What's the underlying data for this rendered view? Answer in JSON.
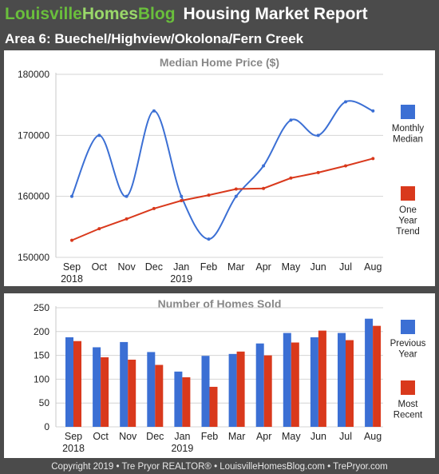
{
  "header": {
    "brand_part1": "Louisville",
    "brand_part2": "Homes",
    "brand_part3": "Blog",
    "report_title": "Housing Market Report"
  },
  "area_title": "Area 6: Buechel/Highview/Okolona/Fern Creek",
  "footer": "Copyright 2019 • Tre Pryor REALTOR® • LouisvilleHomesBlog.com • TrePryor.com",
  "colors": {
    "blue": "#3b6fd4",
    "red": "#d9391c",
    "header_bg": "#4b4b4b",
    "brand_green": "#6abf3c"
  },
  "chart_data": [
    {
      "type": "line",
      "title": "Median Home Price ($)",
      "categories": [
        "Sep",
        "Oct",
        "Nov",
        "Dec",
        "Jan",
        "Feb",
        "Mar",
        "Apr",
        "May",
        "Jun",
        "Jul",
        "Aug"
      ],
      "year_labels": [
        {
          "index": 0,
          "label": "2018"
        },
        {
          "index": 4,
          "label": "2019"
        }
      ],
      "ylim": [
        150000,
        180000
      ],
      "yticks": [
        "150000",
        "160000",
        "170000",
        "180000"
      ],
      "series": [
        {
          "name": "Monthly Median",
          "legend_lines": [
            "Monthly",
            "Median"
          ],
          "color": "#3b6fd4",
          "values": [
            160000,
            170000,
            160000,
            174000,
            160000,
            153000,
            160000,
            165000,
            172500,
            170000,
            175500,
            174000
          ]
        },
        {
          "name": "One Year Trend",
          "legend_lines": [
            "One",
            "Year",
            "Trend"
          ],
          "color": "#d9391c",
          "values": [
            152800,
            154700,
            156300,
            158000,
            159300,
            160200,
            161200,
            161300,
            163000,
            163900,
            165000,
            166200
          ]
        }
      ],
      "grid": true
    },
    {
      "type": "bar",
      "title": "Number of Homes Sold",
      "categories": [
        "Sep",
        "Oct",
        "Nov",
        "Dec",
        "Jan",
        "Feb",
        "Mar",
        "Apr",
        "May",
        "Jun",
        "Jul",
        "Aug"
      ],
      "year_labels": [
        {
          "index": 0,
          "label": "2018"
        },
        {
          "index": 4,
          "label": "2019"
        }
      ],
      "ylim": [
        0,
        250
      ],
      "yticks": [
        "0",
        "50",
        "100",
        "150",
        "200",
        "250"
      ],
      "series": [
        {
          "name": "Previous Year",
          "legend_lines": [
            "Previous",
            "Year"
          ],
          "color": "#3b6fd4",
          "values": [
            188,
            167,
            178,
            157,
            116,
            149,
            153,
            175,
            197,
            188,
            197,
            227
          ]
        },
        {
          "name": "Most Recent",
          "legend_lines": [
            "Most",
            "Recent"
          ],
          "color": "#d9391c",
          "values": [
            180,
            146,
            141,
            130,
            104,
            84,
            158,
            150,
            177,
            202,
            182,
            212
          ]
        }
      ],
      "grid": true
    }
  ]
}
